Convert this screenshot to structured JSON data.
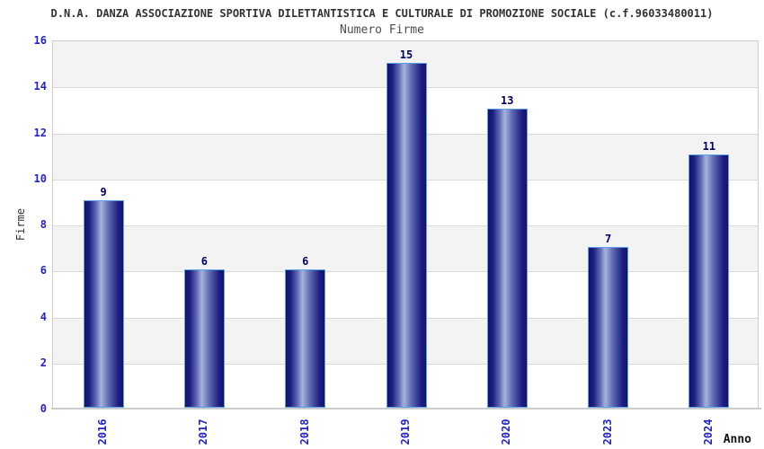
{
  "header": {
    "title": "D.N.A. DANZA ASSOCIAZIONE SPORTIVA DILETTANTISTICA E CULTURALE DI PROMOZIONE SOCIALE (c.f.96033480011)",
    "subtitle": "Numero Firme"
  },
  "chart_data": {
    "type": "bar",
    "categories": [
      "2016",
      "2017",
      "2018",
      "2019",
      "2020",
      "2023",
      "2024"
    ],
    "values": [
      9,
      6,
      6,
      15,
      13,
      7,
      11
    ],
    "title": "Numero Firme",
    "xlabel": "Anno",
    "ylabel": "Firme",
    "ylim": [
      0,
      16
    ],
    "ytick_step": 2,
    "yticks": [
      0,
      2,
      4,
      6,
      8,
      10,
      12,
      14,
      16
    ],
    "grid": "horizontal-bands-alternating",
    "legend": "none",
    "colors": {
      "bar_edge": "#131368",
      "bar_center": "#a8b2e0",
      "bar_border": "#58a0e8",
      "tick_label": "#2222cc",
      "value_label": "#000066",
      "band_gray": "#f3f3f3",
      "band_white": "#ffffff",
      "gridline": "#d9d9d9",
      "plot_border": "#cccccc",
      "title_color": "#333333",
      "subtitle_color": "#4d4d4d"
    }
  }
}
